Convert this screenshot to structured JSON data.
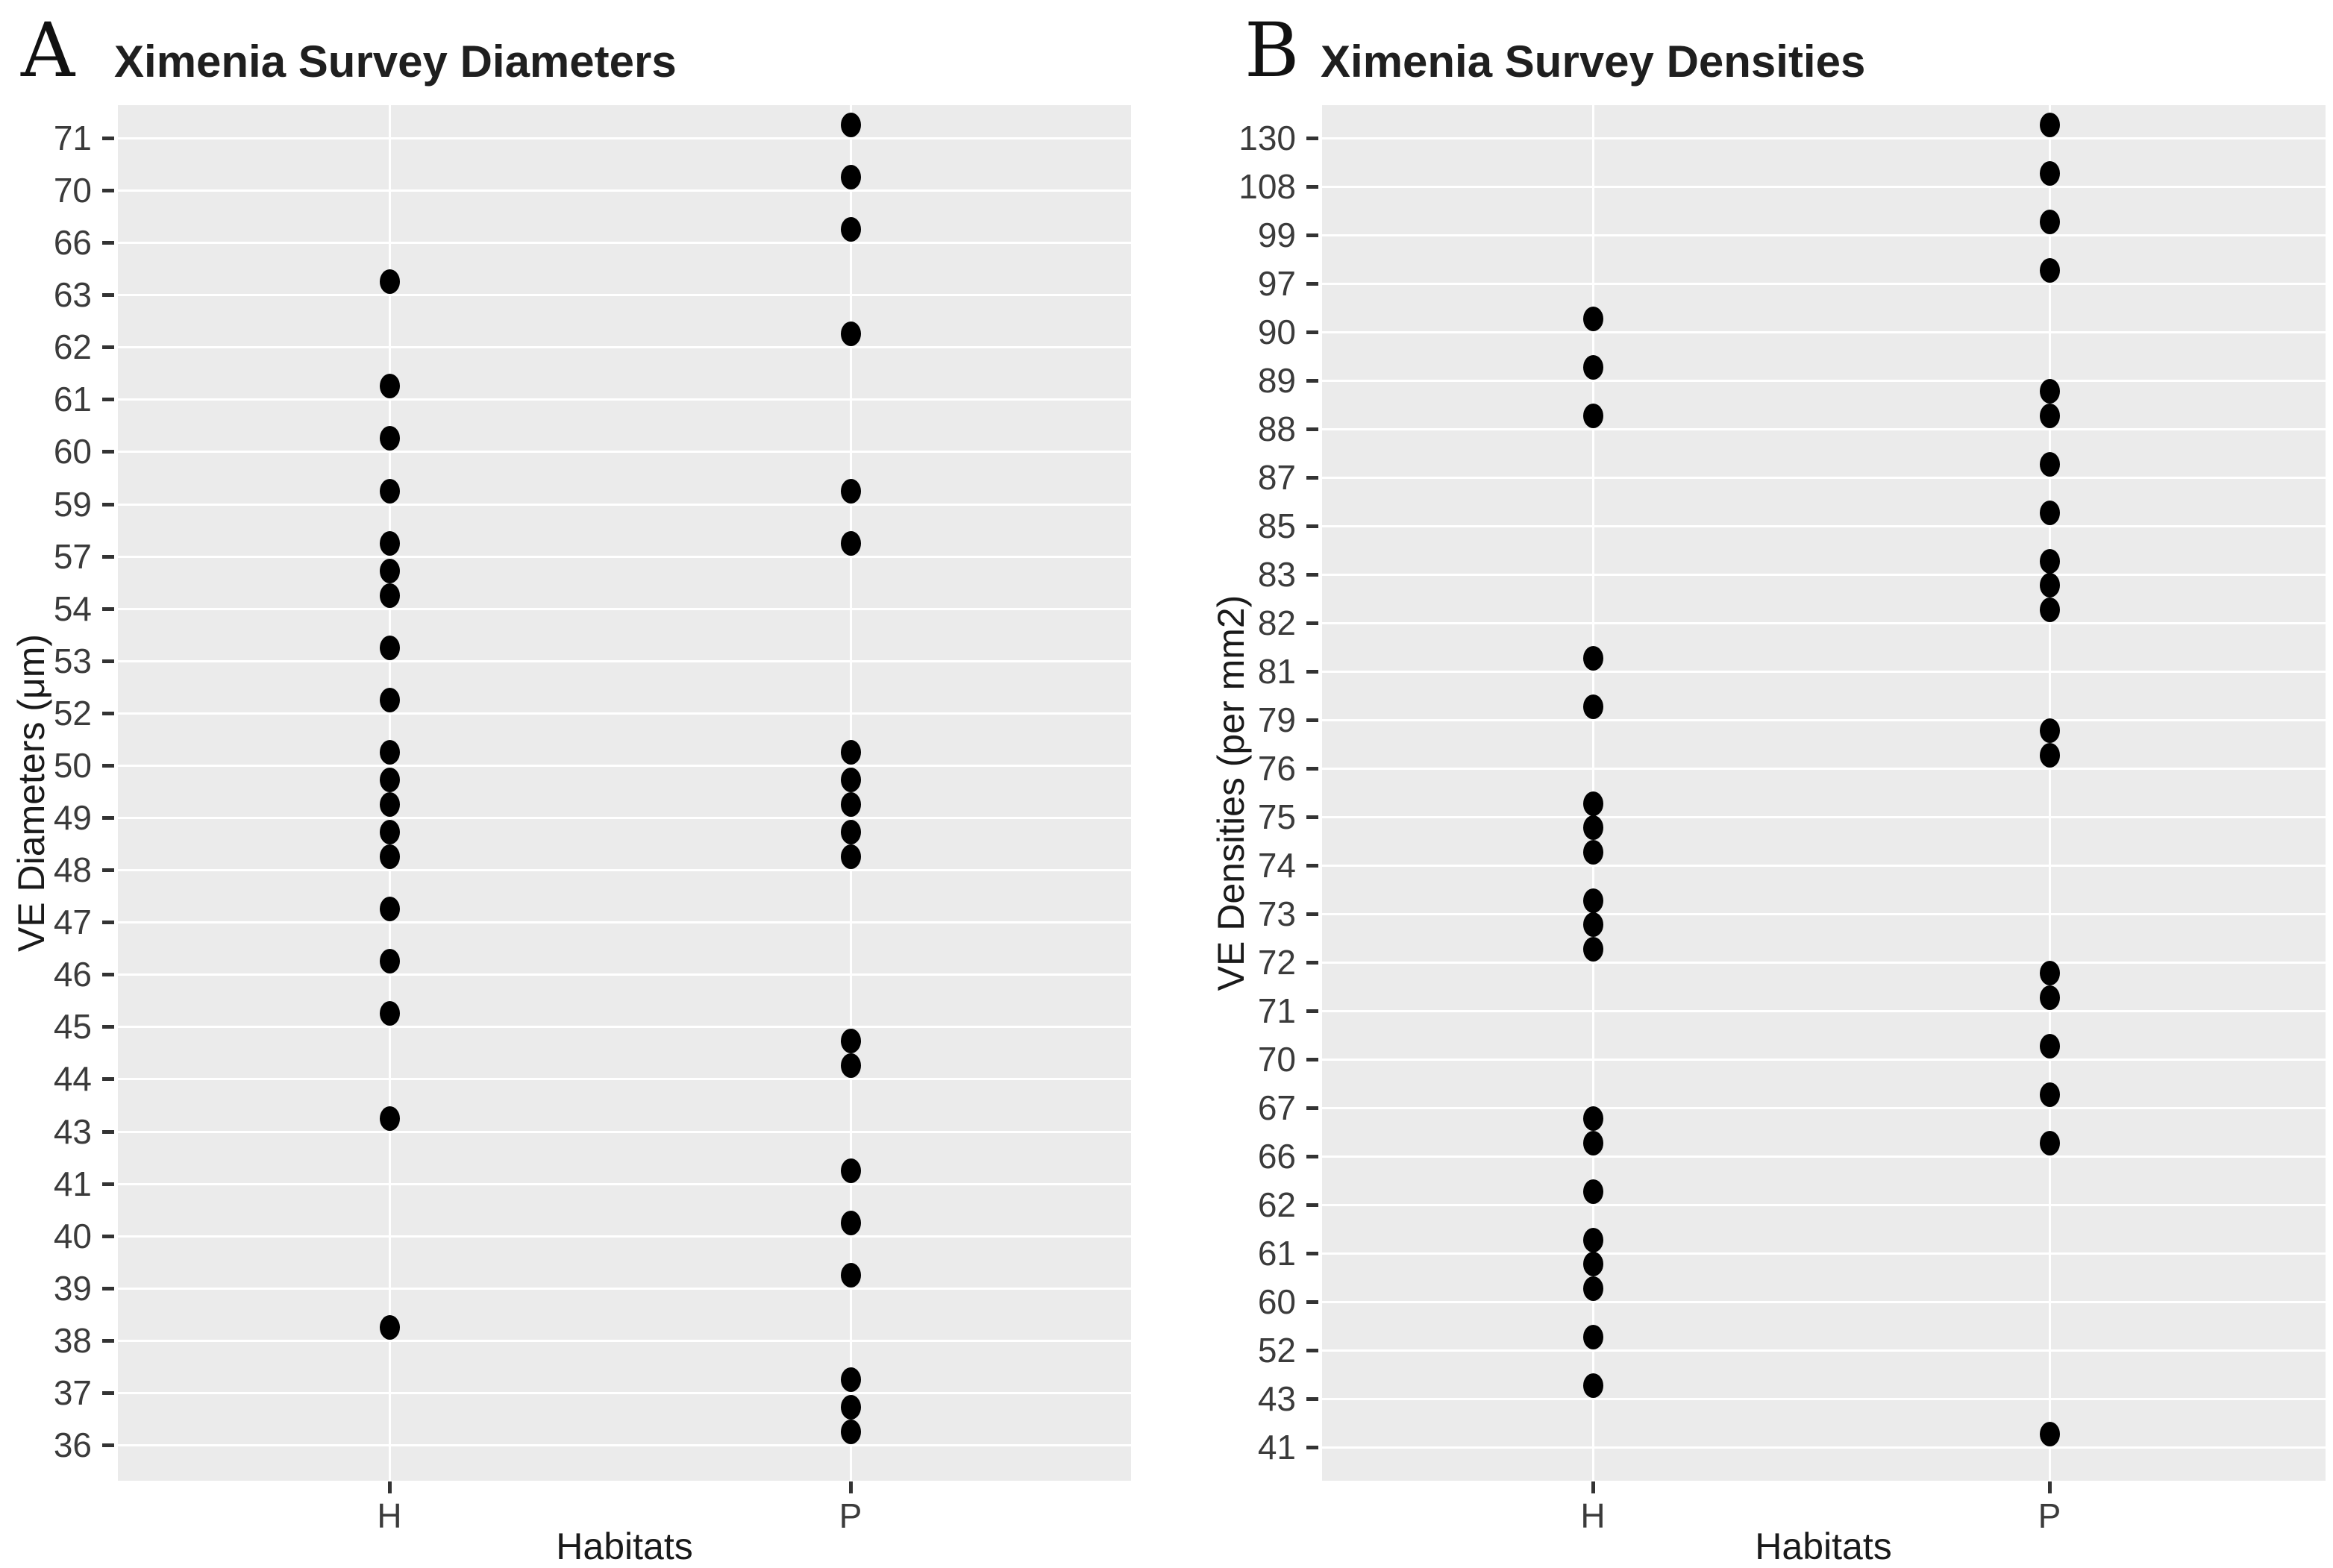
{
  "figure": {
    "background": "#ffffff",
    "plot_background": "#ebebeb",
    "grid_color": "#ffffff",
    "point_color": "#000000"
  },
  "chart_data": [
    {
      "type": "scatter",
      "panel_label": "A",
      "title": "Ximenia Survey Diameters",
      "xlabel": "Habitats",
      "ylabel": "VE Diameters (μm)",
      "x_categories": [
        "H",
        "P"
      ],
      "y_axis_discrete": true,
      "y_tick_labels_top_to_bottom": [
        "71",
        "70",
        "66",
        "63",
        "62",
        "61",
        "60",
        "59",
        "57",
        "54",
        "53",
        "52",
        "50",
        "49",
        "48",
        "47",
        "46",
        "45",
        "44",
        "43",
        "41",
        "40",
        "39",
        "38",
        "37",
        "36"
      ],
      "legend": "none",
      "grid": "major horizontal and category vertical, white on grey",
      "series": [
        {
          "name": "H",
          "values": [
            63,
            61,
            60,
            59,
            57,
            54,
            54,
            53,
            52,
            50,
            49,
            49,
            48,
            48,
            47,
            46,
            45,
            43,
            38
          ]
        },
        {
          "name": "P",
          "values": [
            71,
            70,
            66,
            62,
            59,
            57,
            50,
            49,
            49,
            48,
            48,
            44,
            44,
            41,
            40,
            39,
            37,
            36,
            36
          ]
        }
      ]
    },
    {
      "type": "scatter",
      "panel_label": "B",
      "title": "Ximenia Survey Densities",
      "xlabel": "Habitats",
      "ylabel": "VE Densities (per mm2)",
      "x_categories": [
        "H",
        "P"
      ],
      "y_axis_discrete": true,
      "y_tick_labels_top_to_bottom": [
        "130",
        "108",
        "99",
        "97",
        "90",
        "89",
        "88",
        "87",
        "85",
        "83",
        "82",
        "81",
        "79",
        "76",
        "75",
        "74",
        "73",
        "72",
        "71",
        "70",
        "67",
        "66",
        "62",
        "61",
        "60",
        "52",
        "43",
        "41"
      ],
      "legend": "none",
      "grid": "major horizontal and category vertical, white on grey",
      "series": [
        {
          "name": "H",
          "values": [
            90,
            89,
            88,
            81,
            79,
            75,
            74,
            74,
            73,
            72,
            72,
            66,
            66,
            62,
            61,
            60,
            60,
            52,
            43
          ]
        },
        {
          "name": "P",
          "values": [
            130,
            108,
            99,
            97,
            88,
            88,
            87,
            85,
            83,
            82,
            82,
            76,
            76,
            71,
            71,
            70,
            67,
            66,
            41
          ]
        }
      ]
    }
  ]
}
